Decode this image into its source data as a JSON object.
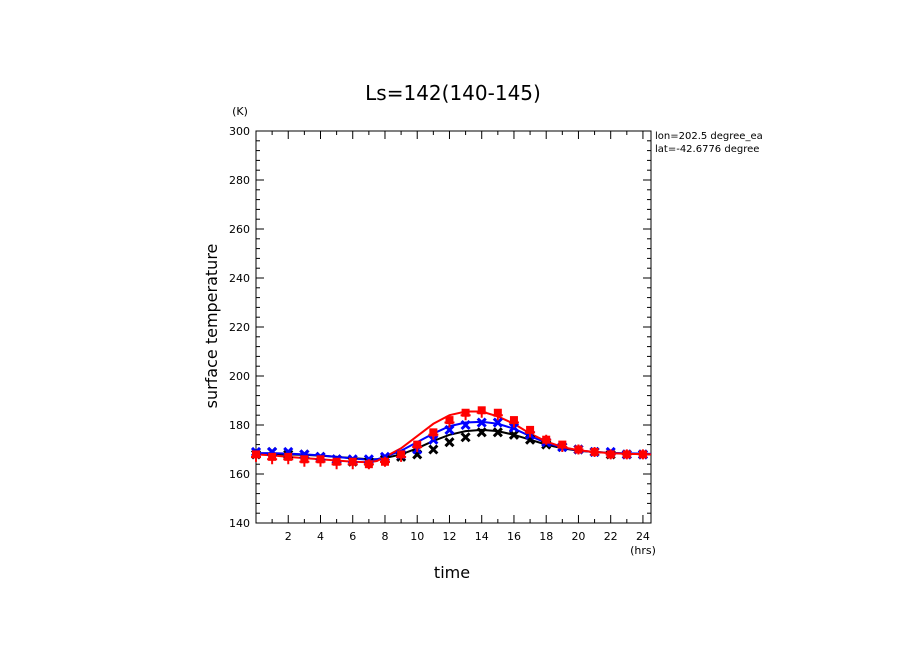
{
  "chart_data": {
    "type": "line",
    "title": "Ls=142(140-145)",
    "xlabel": "time",
    "ylabel": "surface temperature",
    "x_unit": "(hrs)",
    "y_unit": "(K)",
    "xlim": [
      0,
      24.5
    ],
    "ylim": [
      140,
      300
    ],
    "x_ticks": [
      2,
      4,
      6,
      8,
      10,
      12,
      14,
      16,
      18,
      20,
      22,
      24
    ],
    "y_ticks": [
      140,
      160,
      180,
      200,
      220,
      240,
      260,
      280,
      300
    ],
    "annotations": [
      "lon=202.5 degree_ea",
      "lat=-42.6776 degree"
    ],
    "grid": false,
    "colors": {
      "black": "#000000",
      "blue": "#0000ff",
      "red": "#ff0000"
    },
    "line_x": [
      0,
      1,
      2,
      3,
      4,
      5,
      6,
      7,
      7.5,
      8,
      9,
      10,
      11,
      12,
      13,
      14,
      15,
      16,
      17,
      18,
      19,
      20,
      21,
      22,
      23,
      24,
      24.5
    ],
    "lines": [
      {
        "color": "#000000",
        "values": [
          168,
          168,
          168,
          167.8,
          167.5,
          167,
          166.5,
          166,
          166,
          166.5,
          168,
          170.5,
          173.5,
          176,
          177.5,
          178,
          177.5,
          176,
          174,
          172,
          170.5,
          169.5,
          169,
          168.6,
          168.3,
          168.1,
          168
        ]
      },
      {
        "color": "#0000ff",
        "values": [
          168.5,
          168.5,
          168.3,
          168,
          167.6,
          167,
          166.3,
          165.8,
          166,
          167,
          169.5,
          173,
          176.5,
          179.5,
          181,
          181.3,
          180.5,
          178.5,
          175.5,
          172.8,
          170.8,
          169.6,
          169,
          168.6,
          168.4,
          168.3,
          168.2
        ]
      },
      {
        "color": "#ff0000",
        "values": [
          168,
          167.6,
          167,
          166.5,
          166,
          165.5,
          165,
          164.8,
          165.3,
          167,
          170.5,
          175.5,
          180.5,
          184,
          185.5,
          185.5,
          183.5,
          180.5,
          176.5,
          173.3,
          171,
          169.7,
          169,
          168.5,
          168.2,
          168.1,
          168
        ]
      }
    ],
    "points_x": [
      0,
      1,
      2,
      3,
      4,
      5,
      6,
      7,
      8,
      9,
      10,
      11,
      12,
      13,
      14,
      15,
      16,
      17,
      18,
      19,
      20,
      21,
      22,
      23,
      24
    ],
    "points": [
      {
        "marker": "x",
        "color": "#000000",
        "values": [
          168,
          169,
          168,
          168,
          167,
          166,
          165,
          165,
          166,
          167,
          168,
          170,
          173,
          175,
          177,
          177,
          176,
          174,
          172,
          171,
          170,
          169,
          168,
          168,
          168
        ]
      },
      {
        "marker": "x",
        "color": "#0000ff",
        "values": [
          169,
          169,
          169,
          168,
          167,
          166,
          166,
          166,
          167,
          168,
          170,
          174,
          178,
          180,
          181,
          181,
          179,
          176,
          173,
          171,
          170,
          169,
          169,
          168,
          168
        ]
      },
      {
        "marker": "square",
        "color": "#ff0000",
        "values": [
          168,
          167,
          167,
          166,
          166,
          165,
          165,
          164,
          165,
          168,
          172,
          177,
          182,
          185,
          186,
          185,
          182,
          178,
          174,
          172,
          170,
          169,
          168,
          168,
          168
        ]
      },
      {
        "marker": "plus",
        "color": "#ff0000",
        "values": [
          167,
          166,
          166,
          165,
          165,
          164,
          164,
          164,
          165,
          167,
          171,
          176,
          181,
          184,
          185,
          184,
          181,
          177,
          174,
          171,
          170,
          169,
          168,
          168,
          168
        ]
      }
    ]
  }
}
